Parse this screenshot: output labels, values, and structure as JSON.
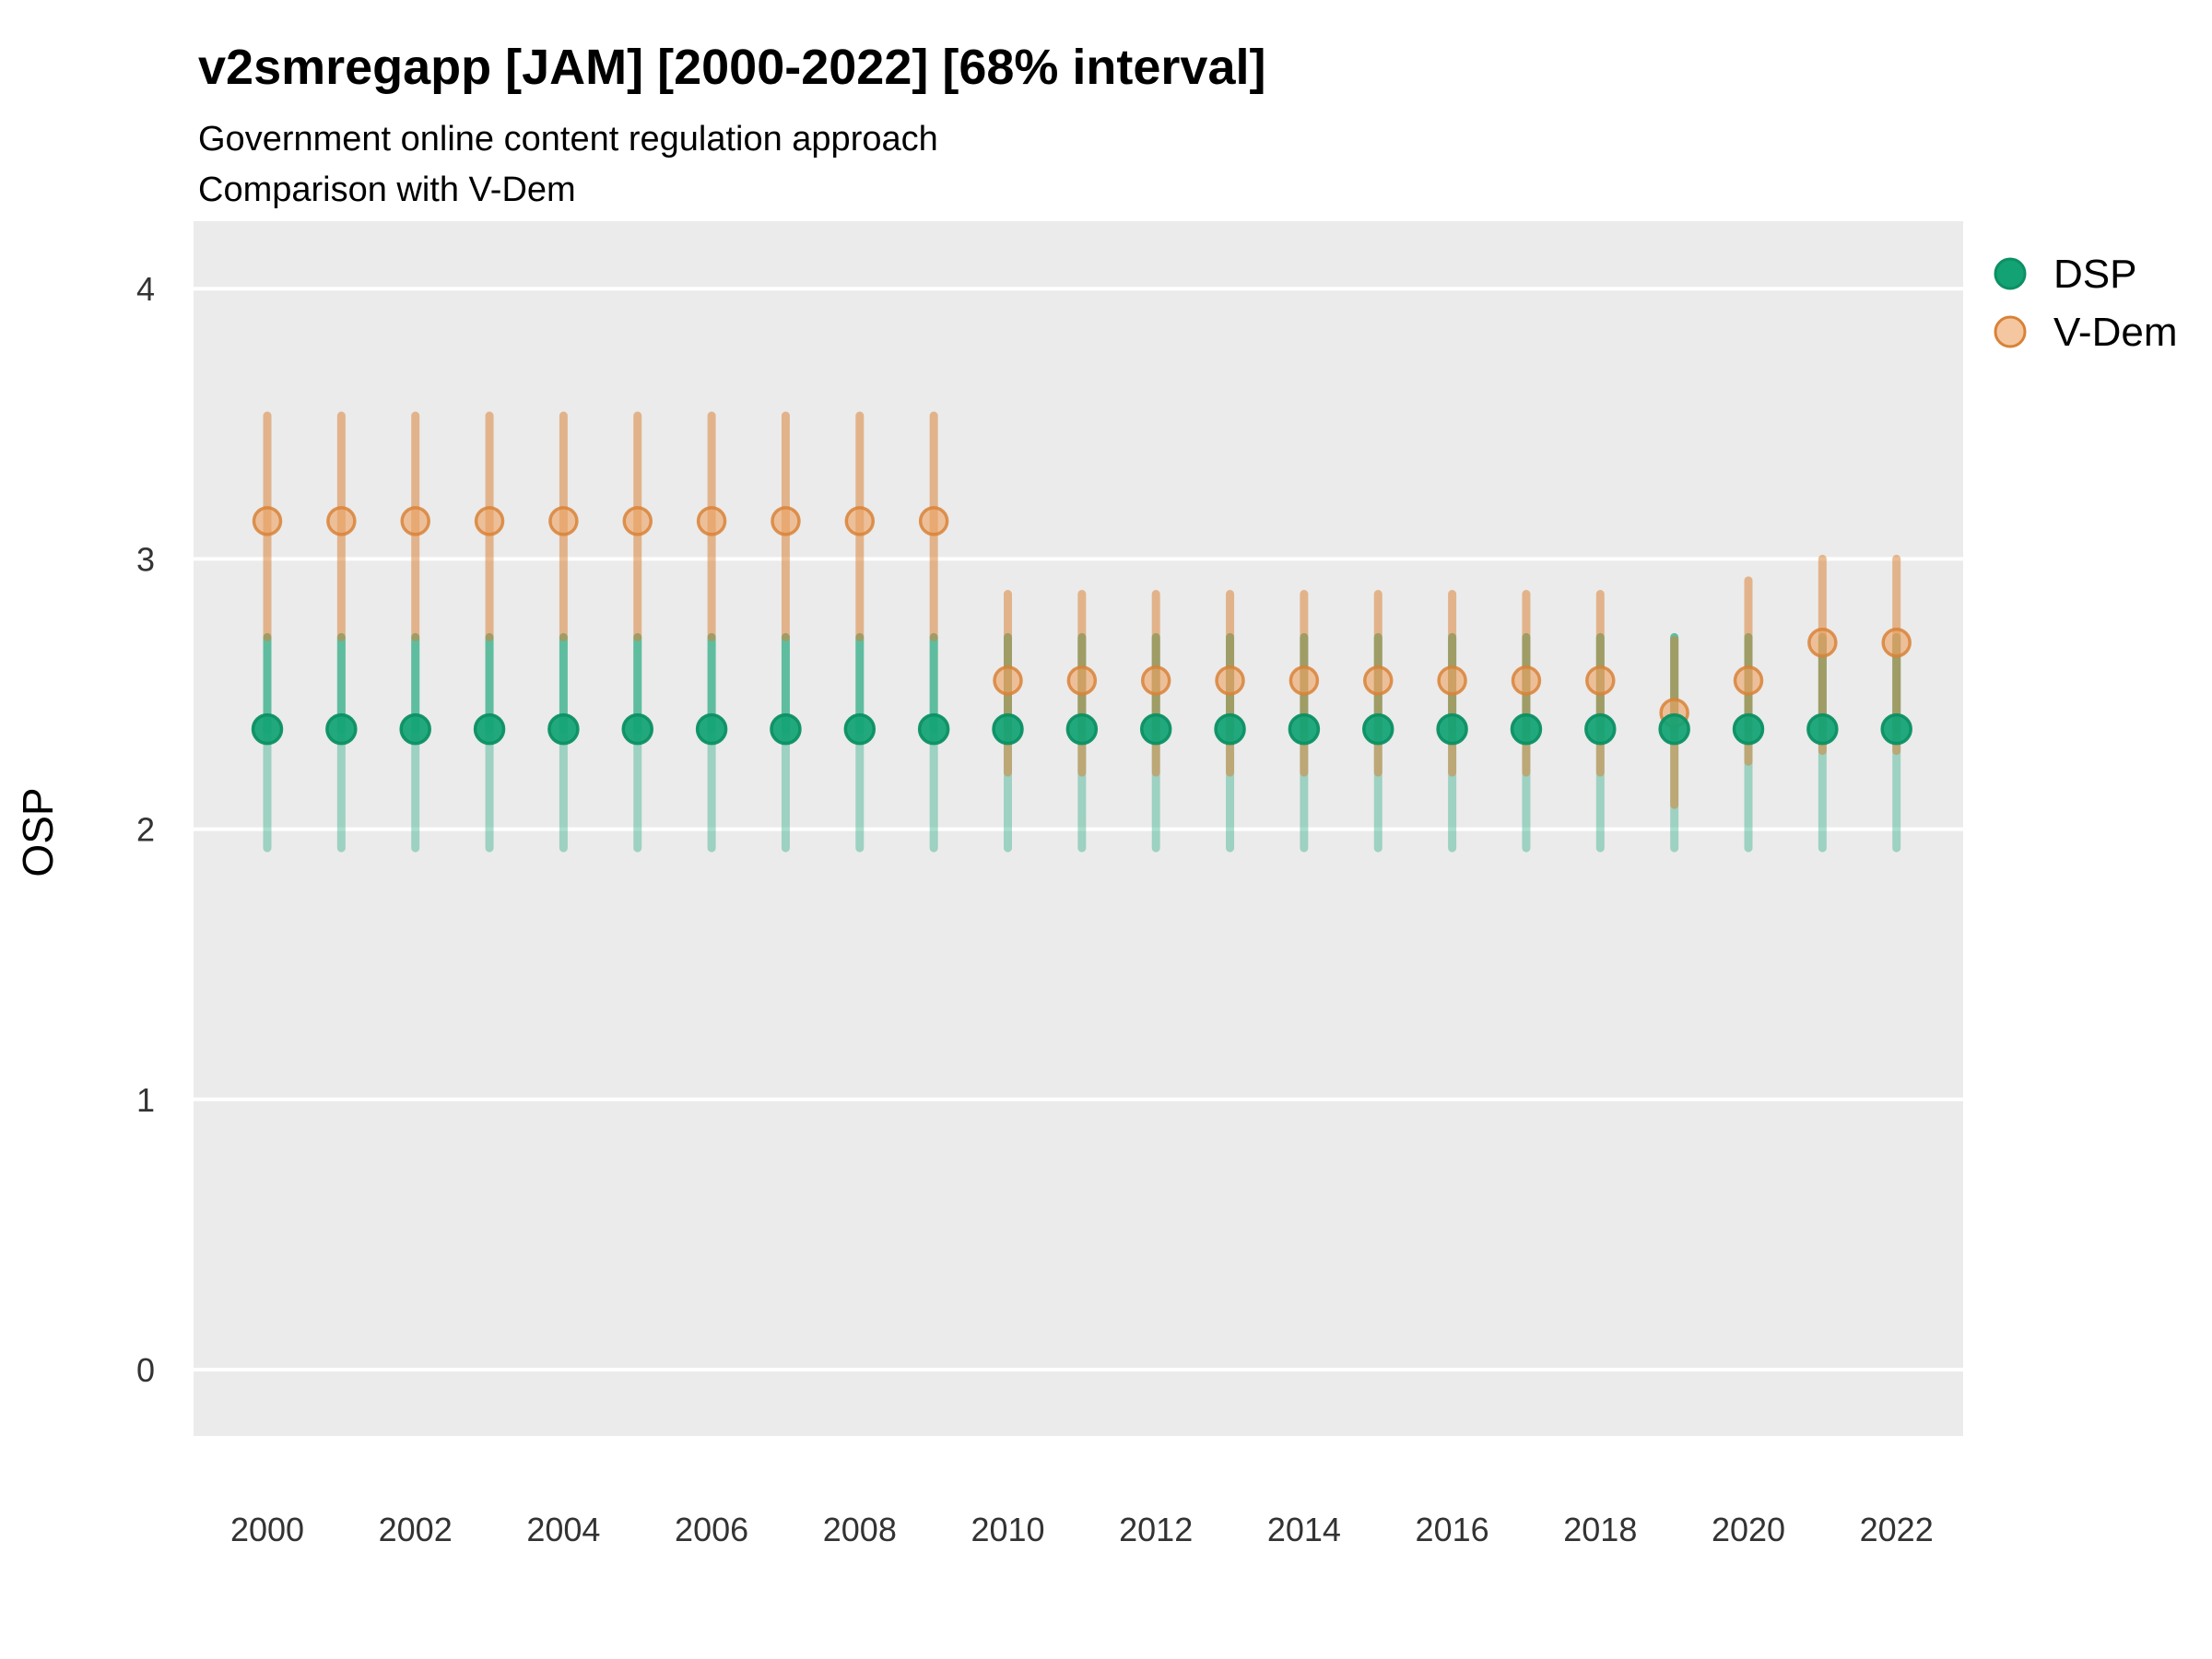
{
  "chart_data": {
    "type": "pointrange",
    "title": "v2smregapp [JAM] [2000-2022] [68% interval]",
    "subtitle_line1": "Government online content regulation approach",
    "subtitle_line2": "Comparison with V-Dem",
    "ylabel": "OSP",
    "xlabel": "",
    "ylim": [
      -0.25,
      4.25
    ],
    "yticks": [
      0,
      1,
      2,
      3,
      4
    ],
    "xticks": [
      2000,
      2002,
      2004,
      2006,
      2008,
      2010,
      2012,
      2014,
      2016,
      2018,
      2020,
      2022
    ],
    "grid": "horizontal major gridlines only, white on gray panel",
    "legend_position": "right-top",
    "panel_bg": "#EBEBEB",
    "grid_color": "#FFFFFF",
    "interval_level": "68%",
    "series": [
      {
        "name": "DSP",
        "point_fill": "#12A274",
        "point_stroke": "#0C9063",
        "line_color": "#34AF88",
        "data": [
          {
            "year": 2000,
            "est": 2.37,
            "lo": 1.93,
            "hi": 2.71
          },
          {
            "year": 2001,
            "est": 2.37,
            "lo": 1.93,
            "hi": 2.71
          },
          {
            "year": 2002,
            "est": 2.37,
            "lo": 1.93,
            "hi": 2.71
          },
          {
            "year": 2003,
            "est": 2.37,
            "lo": 1.93,
            "hi": 2.71
          },
          {
            "year": 2004,
            "est": 2.37,
            "lo": 1.93,
            "hi": 2.71
          },
          {
            "year": 2005,
            "est": 2.37,
            "lo": 1.93,
            "hi": 2.71
          },
          {
            "year": 2006,
            "est": 2.37,
            "lo": 1.93,
            "hi": 2.71
          },
          {
            "year": 2007,
            "est": 2.37,
            "lo": 1.93,
            "hi": 2.71
          },
          {
            "year": 2008,
            "est": 2.37,
            "lo": 1.93,
            "hi": 2.71
          },
          {
            "year": 2009,
            "est": 2.37,
            "lo": 1.93,
            "hi": 2.71
          },
          {
            "year": 2010,
            "est": 2.37,
            "lo": 1.93,
            "hi": 2.71
          },
          {
            "year": 2011,
            "est": 2.37,
            "lo": 1.93,
            "hi": 2.71
          },
          {
            "year": 2012,
            "est": 2.37,
            "lo": 1.93,
            "hi": 2.71
          },
          {
            "year": 2013,
            "est": 2.37,
            "lo": 1.93,
            "hi": 2.71
          },
          {
            "year": 2014,
            "est": 2.37,
            "lo": 1.93,
            "hi": 2.71
          },
          {
            "year": 2015,
            "est": 2.37,
            "lo": 1.93,
            "hi": 2.71
          },
          {
            "year": 2016,
            "est": 2.37,
            "lo": 1.93,
            "hi": 2.71
          },
          {
            "year": 2017,
            "est": 2.37,
            "lo": 1.93,
            "hi": 2.71
          },
          {
            "year": 2018,
            "est": 2.37,
            "lo": 1.93,
            "hi": 2.71
          },
          {
            "year": 2019,
            "est": 2.37,
            "lo": 1.93,
            "hi": 2.71
          },
          {
            "year": 2020,
            "est": 2.37,
            "lo": 1.93,
            "hi": 2.71
          },
          {
            "year": 2021,
            "est": 2.37,
            "lo": 1.93,
            "hi": 2.71
          },
          {
            "year": 2022,
            "est": 2.37,
            "lo": 1.93,
            "hi": 2.71
          }
        ]
      },
      {
        "name": "V-Dem",
        "point_fill": "#ECA163",
        "point_stroke": "#D98237",
        "line_color": "#DA8132",
        "data": [
          {
            "year": 2000,
            "est": 3.14,
            "lo": 2.71,
            "hi": 3.53
          },
          {
            "year": 2001,
            "est": 3.14,
            "lo": 2.71,
            "hi": 3.53
          },
          {
            "year": 2002,
            "est": 3.14,
            "lo": 2.71,
            "hi": 3.53
          },
          {
            "year": 2003,
            "est": 3.14,
            "lo": 2.71,
            "hi": 3.53
          },
          {
            "year": 2004,
            "est": 3.14,
            "lo": 2.71,
            "hi": 3.53
          },
          {
            "year": 2005,
            "est": 3.14,
            "lo": 2.71,
            "hi": 3.53
          },
          {
            "year": 2006,
            "est": 3.14,
            "lo": 2.71,
            "hi": 3.53
          },
          {
            "year": 2007,
            "est": 3.14,
            "lo": 2.71,
            "hi": 3.53
          },
          {
            "year": 2008,
            "est": 3.14,
            "lo": 2.71,
            "hi": 3.53
          },
          {
            "year": 2009,
            "est": 3.14,
            "lo": 2.71,
            "hi": 3.53
          },
          {
            "year": 2010,
            "est": 2.55,
            "lo": 2.21,
            "hi": 2.87
          },
          {
            "year": 2011,
            "est": 2.55,
            "lo": 2.21,
            "hi": 2.87
          },
          {
            "year": 2012,
            "est": 2.55,
            "lo": 2.21,
            "hi": 2.87
          },
          {
            "year": 2013,
            "est": 2.55,
            "lo": 2.21,
            "hi": 2.87
          },
          {
            "year": 2014,
            "est": 2.55,
            "lo": 2.21,
            "hi": 2.87
          },
          {
            "year": 2015,
            "est": 2.55,
            "lo": 2.21,
            "hi": 2.87
          },
          {
            "year": 2016,
            "est": 2.55,
            "lo": 2.21,
            "hi": 2.87
          },
          {
            "year": 2017,
            "est": 2.55,
            "lo": 2.21,
            "hi": 2.87
          },
          {
            "year": 2018,
            "est": 2.55,
            "lo": 2.21,
            "hi": 2.87
          },
          {
            "year": 2019,
            "est": 2.43,
            "lo": 2.09,
            "hi": 2.7
          },
          {
            "year": 2020,
            "est": 2.55,
            "lo": 2.25,
            "hi": 2.92
          },
          {
            "year": 2021,
            "est": 2.69,
            "lo": 2.29,
            "hi": 3.0
          },
          {
            "year": 2022,
            "est": 2.69,
            "lo": 2.29,
            "hi": 3.0
          }
        ]
      }
    ]
  }
}
